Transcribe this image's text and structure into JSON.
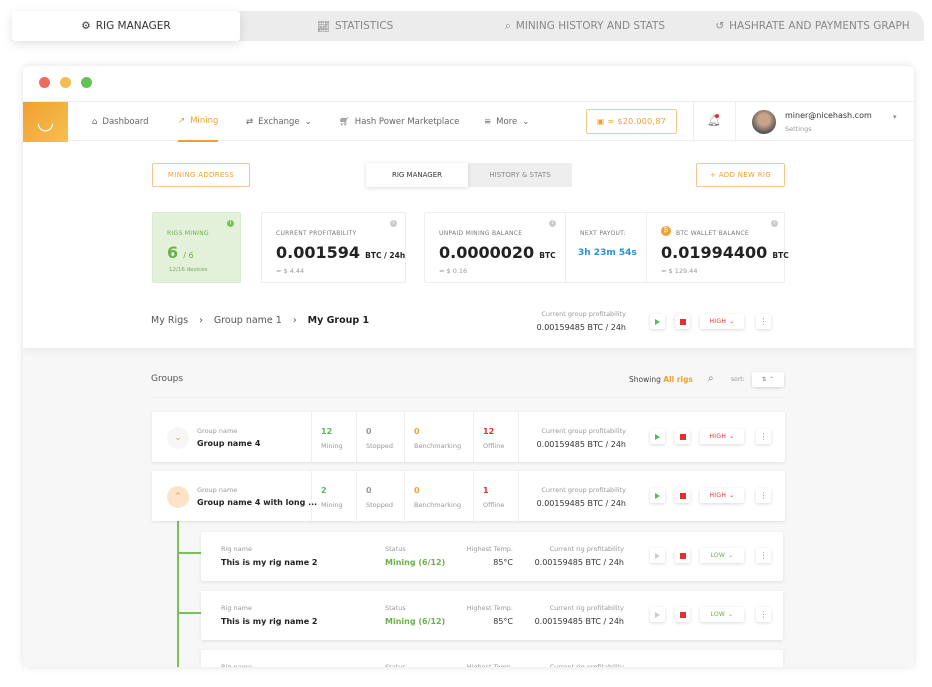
{
  "top_tabs": [
    {
      "label": "RIG MANAGER",
      "icon": "gear-icon"
    },
    {
      "label": "STATISTICS",
      "icon": "chart-icon"
    },
    {
      "label": "MINING HISTORY AND STATS",
      "icon": "search-icon"
    },
    {
      "label": "HASHRATE AND PAYMENTS GRAPH",
      "icon": "history-icon"
    }
  ],
  "window_controls": {
    "colors": [
      "#ee6a5f",
      "#f5bd4f",
      "#61c454"
    ]
  },
  "nav": {
    "items": [
      {
        "label": "Dashboard",
        "icon": "home-icon"
      },
      {
        "label": "Mining",
        "icon": "pickaxe-icon",
        "active": true
      },
      {
        "label": "Exchange",
        "icon": "exchange-icon",
        "dropdown": true
      },
      {
        "label": "Hash Power Marketplace",
        "icon": "cart-icon"
      },
      {
        "label": "More",
        "icon": "menu-icon",
        "dropdown": true
      }
    ],
    "balance": "≈ $20.000,87",
    "user_email": "miner@nicehash.com",
    "user_sub": "Settings"
  },
  "actions": {
    "mining_address": "MINING ADDRESS",
    "add_rig": "+ ADD NEW RIG",
    "seg": [
      "RIG MANAGER",
      "HISTORY & STATS"
    ]
  },
  "stats": {
    "rigs_label": "RIGS MINING",
    "rigs_value": "6",
    "rigs_total": "/ 6",
    "devices": "12/16 devices",
    "profit_label": "CURRENT PROFITABILITY",
    "profit_value": "0.001594",
    "profit_unit": "BTC / 24h",
    "profit_usd": "≈ $ 4.44",
    "unpaid_label": "UNPAID MINING BALANCE",
    "unpaid_value": "0.0000020",
    "unpaid_unit": "BTC",
    "unpaid_usd": "≈ $ 0.16",
    "payout_label": "NEXT PAYOUT:",
    "payout_value": "3h 23m 54s",
    "wallet_label": "BTC WALLET BALANCE",
    "wallet_value": "0.01994400",
    "wallet_unit": "BTC",
    "wallet_usd": "≈ $ 129.44"
  },
  "breadcrumb": [
    "My Rigs",
    "Group name 1",
    "My Group 1"
  ],
  "group_profit": {
    "label": "Current group profitability",
    "value": "0.00159485 BTC / 24h",
    "power": "HIGH"
  },
  "groups_section": {
    "title": "Groups",
    "showing": "Showing",
    "filter": "All rigs",
    "sort": "sort:"
  },
  "groups": [
    {
      "label": "Group name",
      "name": "Group name 4",
      "expanded": false,
      "mining": "12",
      "stopped": "0",
      "bench": "0",
      "offline": "12",
      "profit_label": "Current group profitability",
      "profit": "0.00159485 BTC / 24h",
      "power": "HIGH"
    },
    {
      "label": "Group name",
      "name": "Group name 4 with long ...",
      "expanded": true,
      "mining": "2",
      "stopped": "0",
      "bench": "0",
      "offline": "1",
      "profit_label": "Current group profitability",
      "profit": "0.00159485 BTC / 24h",
      "power": "HIGH"
    }
  ],
  "stat_labels": {
    "mining": "Mining",
    "stopped": "Stopped",
    "bench": "Benchmarking",
    "offline": "Offline"
  },
  "rig_labels": {
    "name": "Rig name",
    "status": "Status",
    "temp": "Highest Temp.",
    "profit": "Current rig profitability"
  },
  "rigs": [
    {
      "name": "This is my rig name 2",
      "status": "Mining (6/12)",
      "temp": "85°C",
      "profit": "0.00159485 BTC / 24h",
      "power": "LOW"
    },
    {
      "name": "This is my rig name 2",
      "status": "Mining (6/12)",
      "temp": "85°C",
      "profit": "0.00159485 BTC / 24h",
      "power": "LOW"
    },
    {
      "name": "",
      "status": "",
      "temp": "",
      "profit": "",
      "power": ""
    }
  ],
  "colors": {
    "accent": "#f0a030",
    "green": "#5cb85c",
    "red": "#e03030",
    "blue": "#2a8fd8"
  }
}
